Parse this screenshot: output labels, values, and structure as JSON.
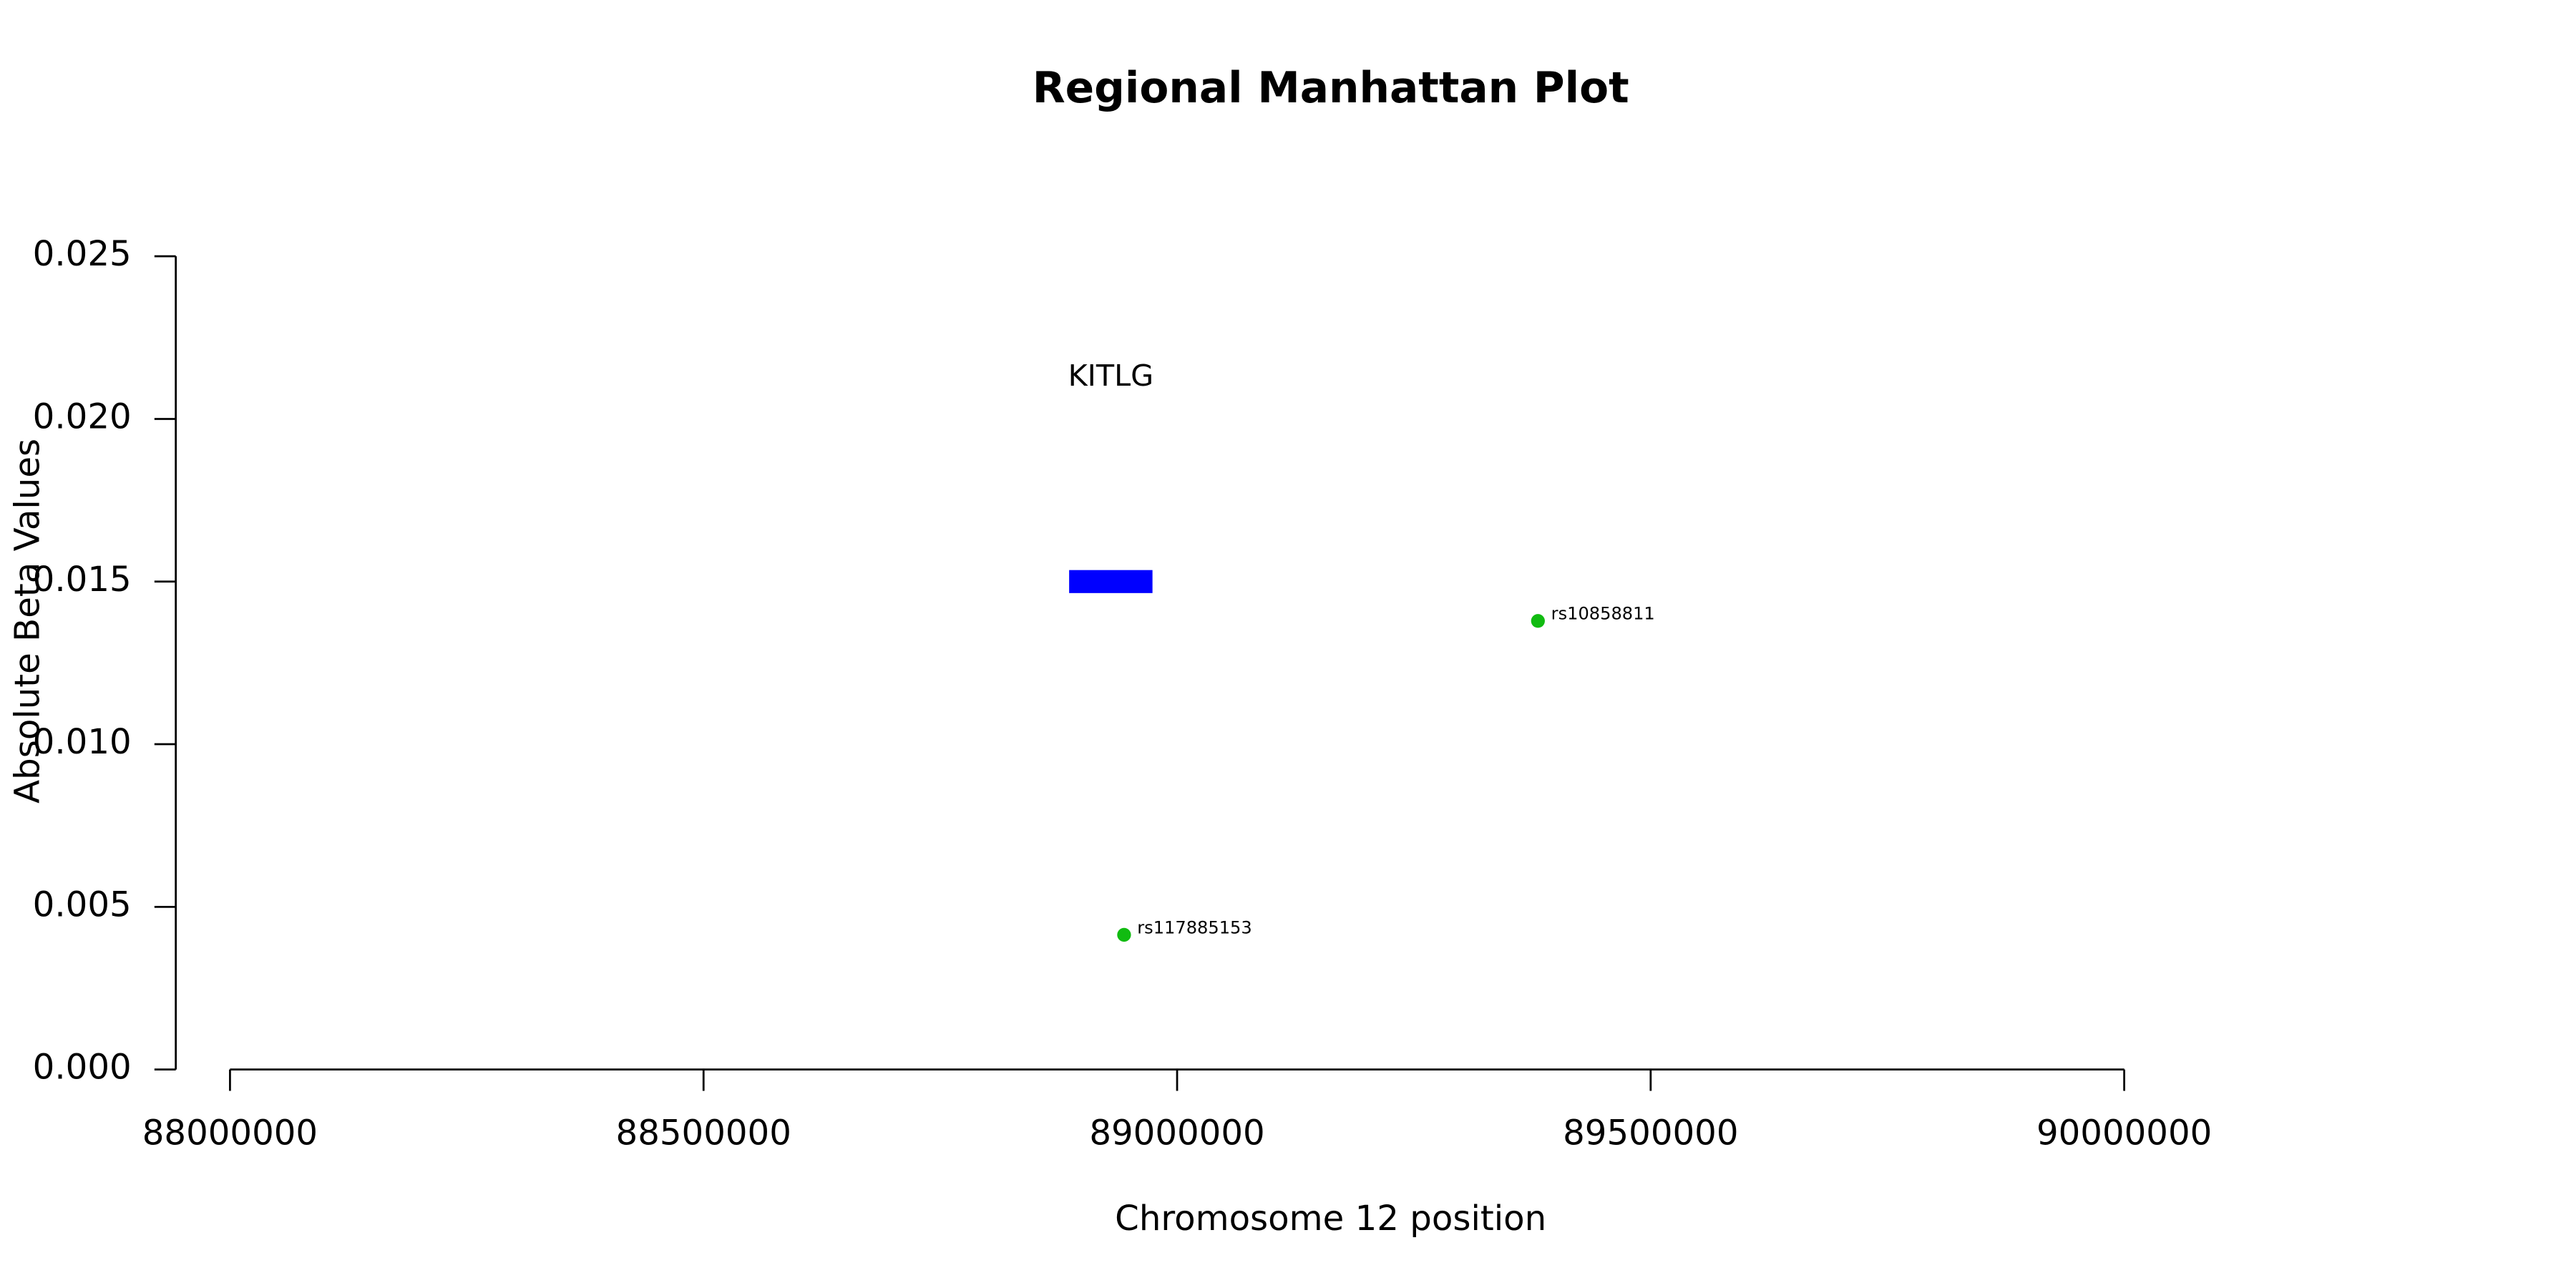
{
  "chart_data": {
    "type": "scatter",
    "title": "Regional Manhattan Plot",
    "x_label": "Chromosome 12 position",
    "y_label": "Absolute Beta Values",
    "x": [
      88944000,
      89381000
    ],
    "values": [
      0.00414,
      0.01379
    ],
    "point_labels": [
      "rs117885153",
      "rs10858811"
    ],
    "color": "#11bb11",
    "genes": [
      {
        "name": "KITLG",
        "start": 88886000,
        "end": 88974000,
        "y": 0.015,
        "color": "#0000ff"
      }
    ],
    "xlim": [
      88000000,
      90000000
    ],
    "xticks": [
      88000000,
      88500000,
      89000000,
      89500000,
      90000000
    ],
    "ylim": [
      0,
      0.025
    ],
    "yticks": [
      {
        "value": 0,
        "label": "0.000"
      },
      {
        "value": 0.005,
        "label": "0.005"
      },
      {
        "value": 0.01,
        "label": "0.010"
      },
      {
        "value": 0.015,
        "label": "0.015"
      },
      {
        "value": 0.02,
        "label": "0.020"
      },
      {
        "value": 0.025,
        "label": "0.025"
      }
    ]
  }
}
